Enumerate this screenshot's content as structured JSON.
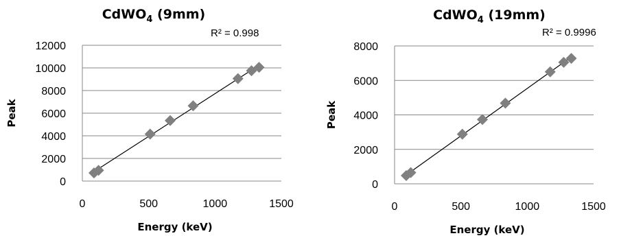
{
  "chart_data": [
    {
      "type": "scatter",
      "title": "CdWO",
      "title_subscript": "4",
      "title_suffix": " (9mm)",
      "xlabel": "Energy (keV)",
      "ylabel": "Peak",
      "xlim": [
        0,
        1500
      ],
      "ylim": [
        0,
        12000
      ],
      "xticks": [
        0,
        500,
        1000,
        1500
      ],
      "yticks": [
        0,
        2000,
        4000,
        6000,
        8000,
        10000,
        12000
      ],
      "grid": "horizontal",
      "marker": "diamond",
      "marker_color": "#808080",
      "trendline": {
        "type": "linear",
        "r2_label": "R² = 0.998"
      },
      "series": [
        {
          "x": [
            88,
            122,
            511,
            662,
            835,
            1173,
            1275,
            1332
          ],
          "y": [
            720,
            950,
            4150,
            5350,
            6650,
            9050,
            9750,
            10050
          ]
        }
      ]
    },
    {
      "type": "scatter",
      "title": "CdWO",
      "title_subscript": "4",
      "title_suffix": " (19mm)",
      "xlabel": "Energy (keV)",
      "ylabel": "Peak",
      "xlim": [
        0,
        1500
      ],
      "ylim": [
        0,
        8000
      ],
      "xticks": [
        0,
        500,
        1000,
        1500
      ],
      "yticks": [
        0,
        2000,
        4000,
        6000,
        8000
      ],
      "grid": "horizontal",
      "marker": "diamond",
      "marker_color": "#808080",
      "trendline": {
        "type": "linear",
        "r2_label": "R² = 0.9996"
      },
      "series": [
        {
          "x": [
            88,
            122,
            511,
            662,
            835,
            1173,
            1275,
            1332
          ],
          "y": [
            480,
            650,
            2880,
            3730,
            4680,
            6500,
            7050,
            7280
          ]
        }
      ]
    }
  ]
}
